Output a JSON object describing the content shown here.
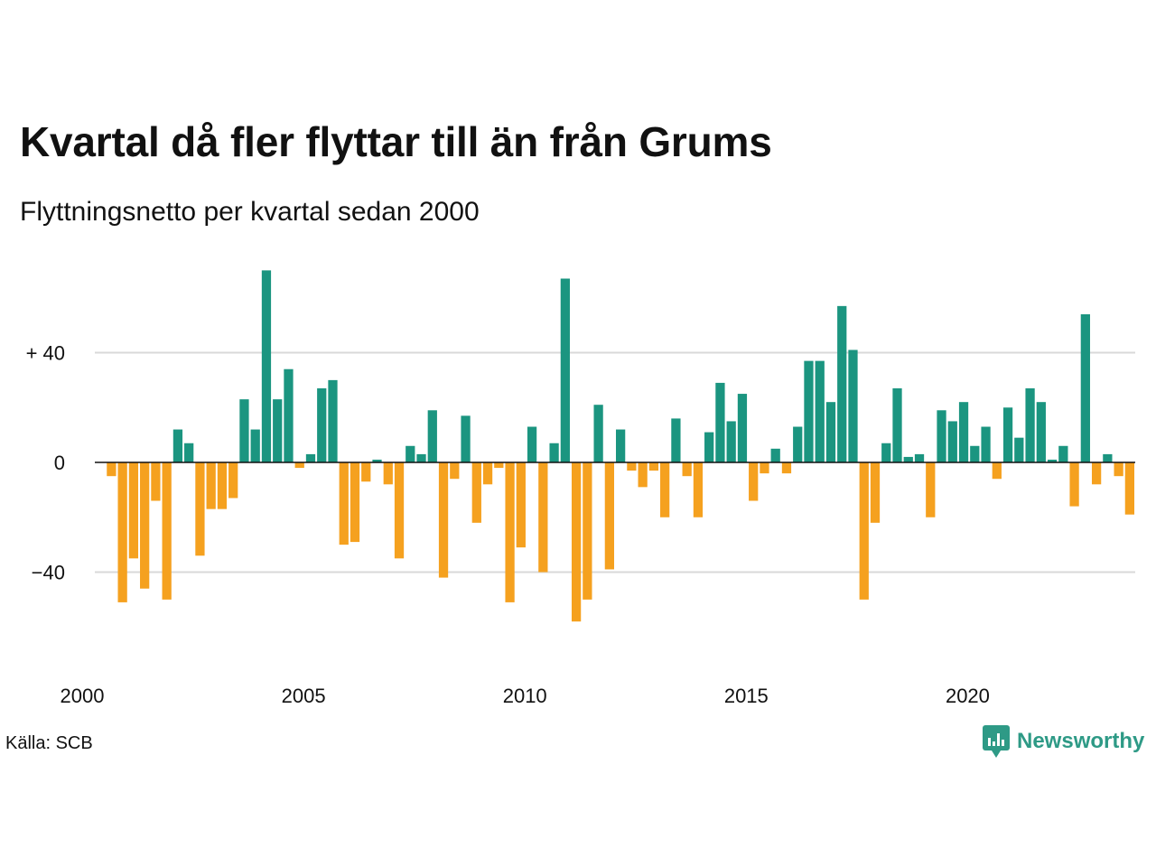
{
  "title": "Kvartal då fler flyttar till än från Grums",
  "subtitle": "Flyttningsnetto per kvartal sedan 2000",
  "source": "Källa: SCB",
  "brand": {
    "name": "Newsworthy",
    "icon": "newsworthy-logo-icon",
    "color": "#2e9a86"
  },
  "colors": {
    "positive": "#1b9580",
    "negative": "#f5a11f",
    "grid": "#d9d9d9",
    "zero_line": "#111111"
  },
  "chart_data": {
    "type": "bar",
    "title": "Kvartal då fler flyttar till än från Grums",
    "subtitle": "Flyttningsnetto per kvartal sedan 2000",
    "xlabel": "",
    "ylabel": "",
    "x_tick_labels": [
      "2000",
      "2005",
      "2010",
      "2015",
      "2020"
    ],
    "y_tick_labels": [
      "+ 40",
      "0",
      "−40"
    ],
    "y_ticks": [
      40,
      0,
      -40
    ],
    "ylim": [
      -72,
      72
    ],
    "grid": true,
    "first_period": "2000 Q1",
    "values": [
      0,
      -5,
      -51,
      -35,
      -46,
      -14,
      -50,
      12,
      7,
      -34,
      -17,
      -17,
      -13,
      23,
      12,
      70,
      23,
      34,
      -2,
      3,
      27,
      30,
      -30,
      -29,
      -7,
      1,
      -8,
      -35,
      6,
      3,
      19,
      -42,
      -6,
      17,
      -22,
      -8,
      -2,
      -51,
      -31,
      13,
      -40,
      7,
      67,
      -58,
      -50,
      21,
      -39,
      12,
      -3,
      -9,
      -3,
      -20,
      16,
      -5,
      -20,
      11,
      29,
      15,
      25,
      -14,
      -4,
      5,
      -4,
      13,
      37,
      37,
      22,
      57,
      41,
      -50,
      -22,
      7,
      27,
      2,
      3,
      -20,
      19,
      15,
      22,
      6,
      13,
      -6,
      20,
      9,
      27,
      22,
      1,
      6,
      -16,
      54,
      -8,
      3,
      -5,
      -19
    ]
  }
}
